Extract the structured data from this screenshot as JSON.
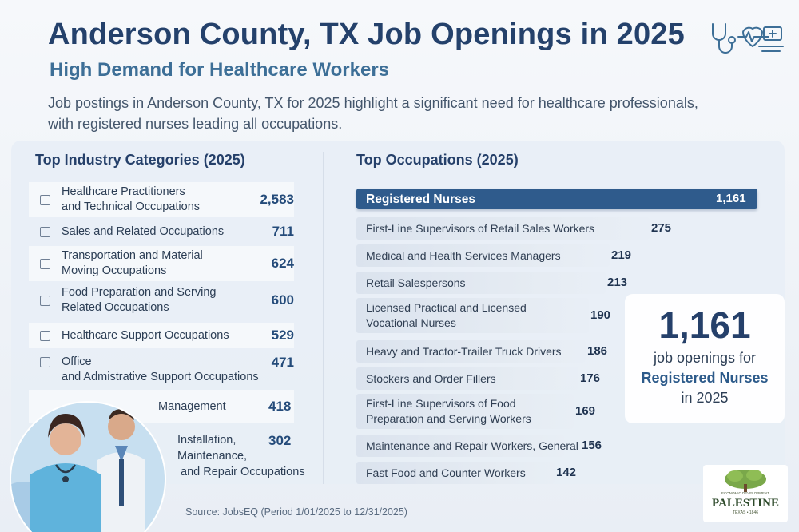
{
  "header": {
    "title": "Anderson County, TX Job Openings in 2025",
    "subtitle": "High Demand for Healthcare Workers",
    "intro_line1": "Job postings in Anderson County, TX for 2025 highlight a significant need for healthcare professionals,",
    "intro_line2": "with registered nurses leading all occupations.",
    "icon": "stethoscope-heartbeat-icon"
  },
  "colors": {
    "title": "#24416b",
    "subtitle": "#3d6f97",
    "top_bar": "#2f5b8c",
    "bar": "#dbe3ee"
  },
  "callout": {
    "number": "1,161",
    "line1": "job openings for",
    "line2": "Registered Nurses",
    "line3": "in 2025"
  },
  "source": "Source: JobsEQ (Period 1/01/2025 to 12/31/2025)",
  "logo": {
    "top_text": "ECONOMIC DEVELOPMENT",
    "name": "PALESTINE",
    "bottom_text": "TEXAS • 1846"
  },
  "chart_data": [
    {
      "type": "table",
      "title": "Top Industry Categories (2025)",
      "rows": [
        {
          "label_line1": "Healthcare Practitioners",
          "label_line2": "and Technical Occupations",
          "value": "2,583"
        },
        {
          "label_line1": "Sales and Related Occupations",
          "label_line2": "",
          "value": "711"
        },
        {
          "label_line1": "Transportation and Material",
          "label_line2": "Moving Occupations",
          "value": "624"
        },
        {
          "label_line1": "Food Preparation and Serving",
          "label_line2": "Related Occupations",
          "value": "600"
        },
        {
          "label_line1": "Healthcare Support Occupations",
          "label_line2": "",
          "value": "529"
        },
        {
          "label_line1": "Office",
          "label_line2": "and Admistrative Support Occupations",
          "value": "471"
        },
        {
          "label_line1": "Management",
          "label_line2": "",
          "value": "418"
        },
        {
          "label_line1": "Installation,",
          "label_line2": "Maintenance,",
          "label_line3": "and Repair Occupations",
          "value": "302"
        }
      ]
    },
    {
      "type": "bar",
      "title": "Top Occupations (2025)",
      "orientation": "horizontal",
      "categories": [
        "Registered Nurses",
        "First-Line Supervisors of Retail Sales Workers",
        "Medical and Health Services Managers",
        "Retail Salespersons",
        "Licensed Practical and Licensed Vocational Nurses",
        "Heavy and Tractor-Trailer Truck Drivers",
        "Stockers and Order Fillers",
        "First-Line Supervisors of Food Preparation and Serving Workers",
        "Maintenance and Repair Workers, General",
        "Fast Food and Counter Workers"
      ],
      "label_lines": [
        [
          "Registered Nurses"
        ],
        [
          "First-Line Supervisors of Retail Sales Workers"
        ],
        [
          "Medical and Health Services Managers"
        ],
        [
          "Retail Salespersons"
        ],
        [
          "Licensed Practical and Licensed",
          "Vocational Nurses"
        ],
        [
          "Heavy and Tractor-Trailer Truck Drivers"
        ],
        [
          "Stockers and Order Fillers"
        ],
        [
          "First-Line Supervisors of Food",
          "Preparation and Serving Workers"
        ],
        [
          "Maintenance and Repair Workers, General"
        ],
        [
          "Fast Food and Counter Workers"
        ]
      ],
      "values": [
        1161,
        275,
        219,
        213,
        190,
        186,
        176,
        169,
        156,
        142
      ],
      "value_labels": [
        "1,161",
        "275",
        "219",
        "213",
        "190",
        "186",
        "176",
        "169",
        "156",
        "142"
      ]
    }
  ]
}
